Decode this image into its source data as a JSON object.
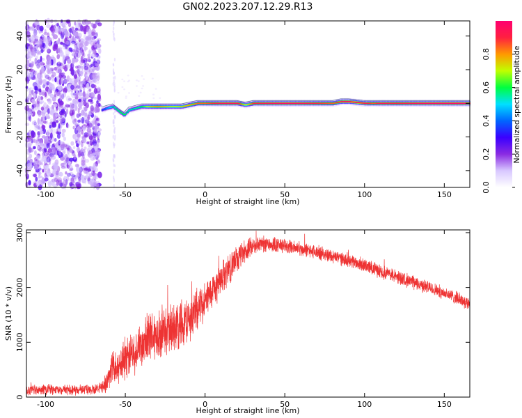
{
  "figure": {
    "title": "GN02.2023.207.12.29.R13"
  },
  "chart_data": [
    {
      "type": "heatmap",
      "xlabel": "Height of straight line (km)",
      "ylabel": "Frequency (Hz)",
      "xlim": [
        -112,
        166
      ],
      "ylim": [
        -50,
        49
      ],
      "xticks": [
        -100,
        -50,
        0,
        50,
        100,
        150
      ],
      "yticks": [
        -40,
        -20,
        0,
        20,
        40
      ],
      "colorbar": {
        "label": "Normalized spectral amplitude",
        "range": [
          0.0,
          1.0
        ],
        "ticks": [
          0.0,
          0.2,
          0.4,
          0.6,
          0.8
        ],
        "colors": [
          "#ffffff",
          "#d8c8ff",
          "#8a2be2",
          "#3a00ff",
          "#0066ff",
          "#00e0ff",
          "#00ff40",
          "#c0ff00",
          "#ff9900",
          "#ff2040",
          "#ff0070"
        ]
      },
      "noise_region_x": [
        -112,
        -66
      ],
      "sparse_column_x": -57,
      "ridge": {
        "x": [
          -65,
          -62,
          -58,
          -54,
          -51,
          -48,
          -44,
          -40,
          -35,
          -30,
          -25,
          -20,
          -15,
          -10,
          -5,
          0,
          10,
          20,
          25,
          30,
          40,
          50,
          60,
          70,
          80,
          85,
          90,
          100,
          105,
          110,
          120,
          130,
          140,
          150,
          160,
          166
        ],
        "y": [
          -4,
          -3,
          -2,
          -5,
          -7,
          -4,
          -3,
          -2,
          -2,
          -2,
          -2,
          -2,
          -2,
          -1,
          0,
          0,
          0,
          0,
          -1,
          0,
          0,
          0,
          0,
          0,
          0,
          1,
          1,
          0,
          0,
          0,
          0,
          0,
          0,
          0,
          0,
          0
        ],
        "amplitude": [
          0.35,
          0.45,
          0.55,
          0.6,
          0.6,
          0.55,
          0.55,
          0.6,
          0.75,
          0.8,
          0.75,
          0.7,
          0.75,
          0.8,
          0.85,
          0.85,
          0.95,
          0.95,
          0.7,
          0.9,
          0.95,
          0.98,
          0.95,
          0.9,
          0.85,
          0.95,
          0.98,
          0.95,
          0.85,
          0.95,
          0.9,
          0.95,
          0.98,
          0.98,
          0.98,
          0.98
        ]
      }
    },
    {
      "type": "line",
      "xlabel": "Height of straight line (km)",
      "ylabel": "SNR (10 * v/v)",
      "xlim": [
        -112,
        166
      ],
      "ylim": [
        0,
        3050
      ],
      "xticks": [
        -100,
        -50,
        0,
        50,
        100,
        150
      ],
      "yticks": [
        0,
        1000,
        2000,
        3000
      ],
      "line_color": "#ee3333",
      "series": [
        {
          "x": [
            -112,
            -100,
            -90,
            -80,
            -70,
            -65,
            -61,
            -58,
            -55,
            -50,
            -45,
            -40,
            -35,
            -30,
            -25,
            -20,
            -15,
            -10,
            -5,
            0,
            5,
            10,
            15,
            20,
            25,
            30,
            35,
            40,
            45,
            50,
            60,
            70,
            80,
            90,
            100,
            110,
            120,
            130,
            140,
            150,
            160,
            166
          ],
          "values": [
            120,
            130,
            140,
            130,
            140,
            170,
            300,
            600,
            500,
            750,
            850,
            900,
            1100,
            1150,
            1200,
            1250,
            1350,
            1400,
            1600,
            1750,
            1950,
            2150,
            2350,
            2500,
            2650,
            2750,
            2800,
            2800,
            2780,
            2750,
            2700,
            2640,
            2570,
            2500,
            2400,
            2300,
            2200,
            2100,
            2000,
            1900,
            1780,
            1700
          ],
          "spread": [
            120,
            110,
            110,
            110,
            110,
            120,
            250,
            350,
            350,
            450,
            500,
            500,
            550,
            550,
            550,
            550,
            550,
            500,
            450,
            400,
            380,
            360,
            340,
            300,
            250,
            200,
            180,
            180,
            170,
            160,
            150,
            150,
            150,
            150,
            150,
            150,
            150,
            150,
            140,
            140,
            140,
            140
          ]
        }
      ]
    }
  ]
}
